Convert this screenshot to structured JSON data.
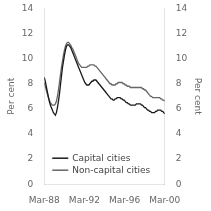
{
  "chart_data": {
    "type": "line",
    "x": [
      0,
      0.4034,
      0.8067,
      1.2101,
      1.6134,
      2.0168,
      2.4202,
      2.8235,
      3.2269,
      3.6303,
      4.0336,
      4.437,
      4.8403,
      5.2437,
      5.6471,
      6.0504,
      6.4538,
      6.8571,
      7.2605,
      7.6639,
      8.0672,
      8.4706,
      8.8739,
      9.2773,
      9.6807,
      10.084,
      10.4874,
      10.8908,
      11.2941,
      11.6975,
      12.1008,
      12.5042,
      12.9076,
      13.3109,
      13.7143,
      14.1176,
      14.521,
      14.9244,
      15.3277,
      15.7311,
      16.1345,
      16.5378,
      16.9412,
      17.3445,
      17.7479,
      18.1513,
      18.5546,
      18.958,
      19.3613,
      19.7647,
      20.1681,
      20.5714,
      20.9748,
      21.3782,
      21.7815,
      22.1849,
      22.5882,
      22.9916,
      23.395,
      23.7983,
      24.2017,
      24.605,
      25.0084,
      25.4118,
      25.8151,
      26.2185,
      26.6218,
      27.0252,
      27.4286,
      27.8319,
      28.2353,
      28.6387,
      29.042,
      29.4454,
      29.8487,
      30.2521,
      30.6555,
      31.0588,
      31.4622,
      31.8655,
      32.2689,
      32.6723,
      33.0756,
      33.479,
      33.8824,
      34.2857,
      34.6891,
      35.0924,
      35.4958,
      35.8992,
      36.3025,
      36.7059,
      37.1092,
      37.5126,
      37.916,
      38.3193,
      38.7227,
      39.1261,
      39.5294,
      39.9328,
      40.3361,
      40.7395,
      41.1429,
      41.5462,
      41.9496,
      42.3529,
      42.7563,
      43.1597,
      43.563,
      43.9664,
      44.3697,
      44.7731,
      45.1765,
      45.5798,
      45.9832,
      46.3866,
      46.7899,
      47.1933,
      47.5966,
      48
    ],
    "series": [
      {
        "name": "Capital cities",
        "color": "#1a1a1a",
        "values": [
          8.5,
          8.2,
          7.8,
          7.4,
          7.0,
          6.6,
          6.3,
          6.1,
          5.9,
          5.7,
          5.6,
          5.5,
          5.7,
          6.1,
          6.6,
          7.2,
          7.9,
          8.6,
          9.3,
          9.8,
          10.3,
          10.7,
          11.0,
          11.1,
          11.1,
          11.0,
          10.9,
          10.7,
          10.5,
          10.3,
          10.1,
          9.9,
          9.7,
          9.5,
          9.3,
          9.1,
          8.9,
          8.7,
          8.5,
          8.3,
          8.1,
          8.0,
          7.9,
          7.9,
          7.9,
          8.0,
          8.1,
          8.2,
          8.2,
          8.3,
          8.3,
          8.3,
          8.2,
          8.1,
          8.0,
          7.9,
          7.8,
          7.7,
          7.6,
          7.5,
          7.4,
          7.3,
          7.2,
          7.1,
          7.0,
          6.9,
          6.8,
          6.8,
          6.7,
          6.7,
          6.8,
          6.8,
          6.9,
          6.9,
          6.9,
          6.9,
          6.8,
          6.8,
          6.7,
          6.7,
          6.6,
          6.5,
          6.5,
          6.4,
          6.4,
          6.3,
          6.3,
          6.3,
          6.3,
          6.3,
          6.3,
          6.4,
          6.4,
          6.4,
          6.4,
          6.4,
          6.3,
          6.3,
          6.2,
          6.1,
          6.1,
          6.0,
          5.9,
          5.9,
          5.8,
          5.8,
          5.7,
          5.7,
          5.7,
          5.7,
          5.8,
          5.8,
          5.9,
          5.9,
          5.9,
          5.9,
          5.8,
          5.8,
          5.7,
          5.6
        ]
      },
      {
        "name": "Non-capital cities",
        "color": "#666666",
        "values": [
          8.1,
          7.8,
          7.5,
          7.2,
          6.9,
          6.7,
          6.5,
          6.4,
          6.3,
          6.3,
          6.3,
          6.4,
          6.6,
          7.0,
          7.5,
          8.1,
          8.7,
          9.3,
          9.8,
          10.3,
          10.7,
          11.0,
          11.2,
          11.3,
          11.3,
          11.2,
          11.1,
          10.9,
          10.8,
          10.6,
          10.4,
          10.2,
          10.0,
          9.8,
          9.6,
          9.5,
          9.4,
          9.3,
          9.3,
          9.3,
          9.3,
          9.3,
          9.3,
          9.4,
          9.4,
          9.5,
          9.5,
          9.5,
          9.5,
          9.5,
          9.4,
          9.4,
          9.3,
          9.2,
          9.1,
          9.0,
          8.9,
          8.8,
          8.7,
          8.6,
          8.5,
          8.4,
          8.3,
          8.2,
          8.1,
          8.0,
          8.0,
          7.9,
          7.9,
          7.9,
          7.9,
          8.0,
          8.0,
          8.1,
          8.1,
          8.1,
          8.1,
          8.1,
          8.0,
          8.0,
          7.9,
          7.9,
          7.8,
          7.8,
          7.8,
          7.7,
          7.7,
          7.7,
          7.7,
          7.7,
          7.7,
          7.7,
          7.7,
          7.7,
          7.7,
          7.7,
          7.7,
          7.6,
          7.6,
          7.5,
          7.5,
          7.4,
          7.3,
          7.2,
          7.1,
          7.0,
          7.0,
          6.9,
          6.9,
          6.9,
          6.9,
          6.9,
          6.9,
          6.9,
          6.9,
          6.8,
          6.8,
          6.7,
          6.7,
          6.6
        ]
      }
    ],
    "xlim": [
      0,
      48
    ],
    "xticks": [
      {
        "value": 0,
        "label": "Mar-88"
      },
      {
        "value": 16,
        "label": "Mar-92"
      },
      {
        "value": 32,
        "label": "Mar-96"
      },
      {
        "value": 48,
        "label": "Mar-00"
      }
    ],
    "ylim": [
      0,
      14
    ],
    "yticks": [
      0,
      2,
      4,
      6,
      8,
      10,
      12,
      14
    ],
    "y2lim": [
      0,
      14
    ],
    "y2ticks": [
      0,
      2,
      4,
      6,
      8,
      10,
      12,
      14
    ],
    "ylabel": "Per cent",
    "y2label": "Per cent",
    "grid": false,
    "legend": "lower left"
  }
}
